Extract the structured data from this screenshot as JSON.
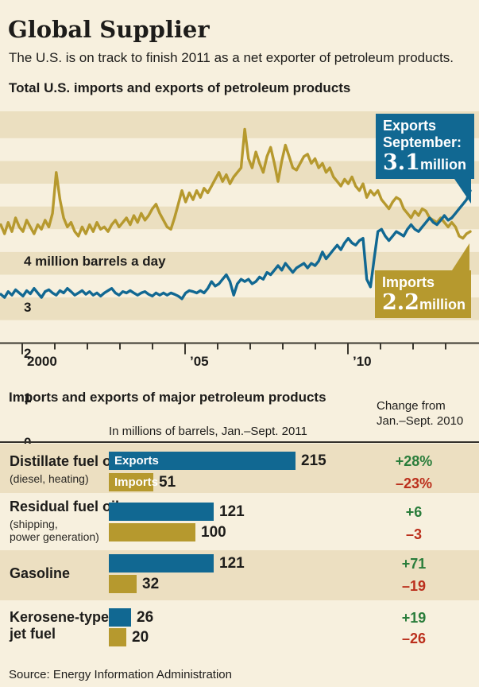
{
  "header": {
    "title": "Global Supplier",
    "subtitle": "The U.S. is on track to finish 2011 as a net exporter of petroleum products."
  },
  "line_chart": {
    "title": "Total U.S. imports and exports of petroleum products",
    "y_axis_top_label": "4 million barrels a day",
    "y_tick_labels": [
      "3",
      "2",
      "1",
      "0"
    ],
    "x_tick_labels": [
      "2000",
      "’05",
      "’10"
    ],
    "export_callout": {
      "line1": "Exports",
      "line2": "September:",
      "big": "3.1",
      "unit": "million"
    },
    "import_callout": {
      "line1": "Imports",
      "big": "2.2",
      "unit": "million"
    }
  },
  "table_labels": {
    "rows": [
      {
        "name": "Distillate fuel oil",
        "name2": "",
        "sub1": "(diesel, heating)",
        "sub2": ""
      },
      {
        "name": "Residual fuel oil",
        "name2": "",
        "sub1": "(shipping,",
        "sub2": "power generation)"
      },
      {
        "name": "Gasoline",
        "name2": "",
        "sub1": "",
        "sub2": ""
      },
      {
        "name": "Kerosene-type",
        "name2": "jet fuel",
        "sub1": "",
        "sub2": ""
      }
    ]
  },
  "source": "Source: Energy Information Administration",
  "chart_data": [
    {
      "type": "line",
      "title": "Total U.S. imports and exports of petroleum products",
      "ylabel": "million barrels a day",
      "ylim": [
        0,
        4.85
      ],
      "x_range": [
        "1999",
        "Sept. 2011"
      ],
      "x_tick_labels": [
        "2000",
        "’05",
        "’10"
      ],
      "y_tick_values": [
        0,
        1,
        2,
        3,
        4
      ],
      "grid": "alternating horizontal background bands, 0.5 unit tall",
      "legend_position": "annotated callouts on chart",
      "annotations": [
        {
          "series": "Exports",
          "text": "Exports September: 3.1 million",
          "value": 3.1
        },
        {
          "series": "Imports",
          "text": "Imports 2.2 million",
          "value": 2.2
        }
      ],
      "series": [
        {
          "name": "Imports",
          "color": "#b6992e",
          "values": [
            2.35,
            2.15,
            2.4,
            2.2,
            2.5,
            2.3,
            2.2,
            2.45,
            2.3,
            2.15,
            2.35,
            2.25,
            2.45,
            2.3,
            2.6,
            3.5,
            2.9,
            2.5,
            2.3,
            2.4,
            2.2,
            2.1,
            2.3,
            2.15,
            2.35,
            2.2,
            2.4,
            2.25,
            2.3,
            2.2,
            2.35,
            2.45,
            2.3,
            2.4,
            2.5,
            2.35,
            2.55,
            2.4,
            2.6,
            2.45,
            2.55,
            2.7,
            2.8,
            2.6,
            2.45,
            2.3,
            2.25,
            2.5,
            2.8,
            3.1,
            2.85,
            3.05,
            2.9,
            3.1,
            2.95,
            3.15,
            3.05,
            3.2,
            3.35,
            3.5,
            3.3,
            3.45,
            3.25,
            3.4,
            3.5,
            3.6,
            4.45,
            3.8,
            3.6,
            3.95,
            3.7,
            3.5,
            3.85,
            4.05,
            3.7,
            3.3,
            3.75,
            4.1,
            3.85,
            3.6,
            3.55,
            3.7,
            3.85,
            3.9,
            3.7,
            3.8,
            3.6,
            3.7,
            3.5,
            3.6,
            3.4,
            3.3,
            3.2,
            3.35,
            3.25,
            3.4,
            3.2,
            3.1,
            3.25,
            2.95,
            3.1,
            3.0,
            3.1,
            2.9,
            2.8,
            2.7,
            2.85,
            2.95,
            2.9,
            2.7,
            2.6,
            2.5,
            2.65,
            2.55,
            2.7,
            2.65,
            2.5,
            2.45,
            2.4,
            2.5,
            2.4,
            2.3,
            2.4,
            2.3,
            2.1,
            2.05,
            2.15,
            2.2
          ]
        },
        {
          "name": "Exports",
          "color": "#116892",
          "values": [
            0.82,
            0.75,
            0.88,
            0.8,
            0.92,
            0.85,
            0.78,
            0.9,
            0.83,
            0.95,
            0.85,
            0.75,
            0.88,
            0.92,
            0.85,
            0.8,
            0.9,
            0.85,
            0.95,
            0.88,
            0.8,
            0.85,
            0.9,
            0.82,
            0.88,
            0.8,
            0.85,
            0.78,
            0.85,
            0.9,
            0.95,
            0.85,
            0.8,
            0.88,
            0.85,
            0.9,
            0.85,
            0.8,
            0.85,
            0.88,
            0.82,
            0.78,
            0.85,
            0.8,
            0.85,
            0.8,
            0.85,
            0.82,
            0.78,
            0.72,
            0.85,
            0.9,
            0.88,
            0.85,
            0.9,
            0.85,
            0.95,
            1.1,
            1.0,
            1.05,
            1.15,
            1.25,
            1.1,
            0.8,
            1.05,
            1.15,
            1.1,
            1.15,
            1.05,
            1.1,
            1.2,
            1.15,
            1.3,
            1.25,
            1.35,
            1.45,
            1.35,
            1.5,
            1.4,
            1.3,
            1.4,
            1.45,
            1.5,
            1.4,
            1.5,
            1.45,
            1.55,
            1.75,
            1.6,
            1.7,
            1.8,
            1.9,
            1.8,
            1.95,
            2.05,
            1.95,
            1.9,
            2.0,
            2.05,
            1.15,
            0.98,
            1.6,
            2.2,
            2.25,
            2.1,
            2.0,
            2.1,
            2.2,
            2.15,
            2.1,
            2.25,
            2.35,
            2.25,
            2.2,
            2.3,
            2.4,
            2.5,
            2.4,
            2.35,
            2.45,
            2.55,
            2.45,
            2.5,
            2.6,
            2.7,
            2.8,
            2.9,
            3.1
          ]
        }
      ]
    },
    {
      "type": "bar",
      "title": "Imports and exports of major petroleum products",
      "unit_note": "In millions of barrels, Jan.–Sept. 2011",
      "change_note_line1": "Change from",
      "change_note_line2": "Jan.–Sept. 2010",
      "categories": [
        "Distillate fuel oil (diesel, heating)",
        "Residual fuel oil (shipping, power generation)",
        "Gasoline",
        "Kerosene-type jet fuel"
      ],
      "xlim": [
        0,
        215
      ],
      "series": [
        {
          "name": "Exports",
          "color": "#116892",
          "values": [
            215,
            121,
            121,
            26
          ],
          "change_vs_2010": [
            "+28%",
            "+6",
            "+71",
            "+19"
          ]
        },
        {
          "name": "Imports",
          "color": "#b6992e",
          "values": [
            51,
            100,
            32,
            20
          ],
          "change_vs_2010": [
            "–23%",
            "–3",
            "–19",
            "–26"
          ]
        }
      ]
    }
  ]
}
